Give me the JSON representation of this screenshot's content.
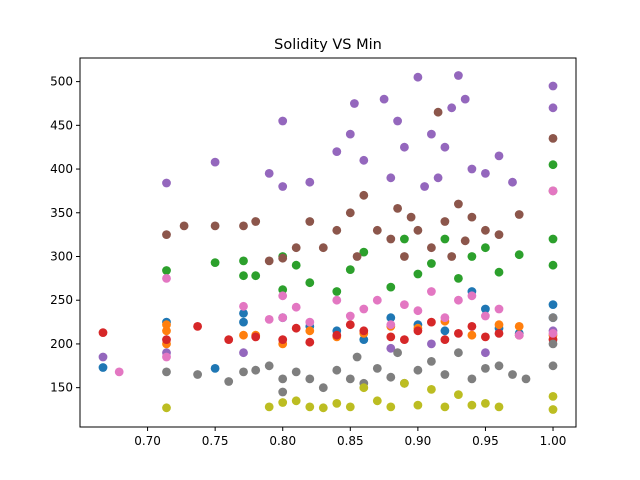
{
  "chart_data": {
    "type": "scatter",
    "title": "Solidity VS Min",
    "xlabel": "",
    "ylabel": "",
    "xlim": [
      0.65,
      1.017
    ],
    "ylim": [
      105,
      527
    ],
    "x_ticks": [
      0.7,
      0.75,
      0.8,
      0.85,
      0.9,
      0.95,
      1.0
    ],
    "x_tick_labels": [
      "0.70",
      "0.75",
      "0.80",
      "0.85",
      "0.90",
      "0.95",
      "1.00"
    ],
    "y_ticks": [
      150,
      200,
      250,
      300,
      350,
      400,
      450,
      500
    ],
    "y_tick_labels": [
      "150",
      "200",
      "250",
      "300",
      "350",
      "400",
      "450",
      "500"
    ],
    "grid": false,
    "legend": "none",
    "series": [
      {
        "color": "#1f77b4",
        "points": [
          [
            0.667,
            173
          ],
          [
            0.714,
            225
          ],
          [
            0.75,
            172
          ],
          [
            0.771,
            225
          ],
          [
            0.771,
            235
          ],
          [
            0.8,
            230
          ],
          [
            0.82,
            220
          ],
          [
            0.84,
            215
          ],
          [
            0.86,
            205
          ],
          [
            0.88,
            230
          ],
          [
            0.9,
            222
          ],
          [
            0.92,
            215
          ],
          [
            0.94,
            260
          ],
          [
            0.95,
            240
          ],
          [
            0.96,
            218
          ],
          [
            0.975,
            212
          ],
          [
            1.0,
            230
          ],
          [
            1.0,
            245
          ]
        ]
      },
      {
        "color": "#ff7f0e",
        "points": [
          [
            0.714,
            200
          ],
          [
            0.714,
            215
          ],
          [
            0.714,
            222
          ],
          [
            0.771,
            210
          ],
          [
            0.78,
            210
          ],
          [
            0.8,
            200
          ],
          [
            0.82,
            215
          ],
          [
            0.84,
            208
          ],
          [
            0.86,
            212
          ],
          [
            0.88,
            220
          ],
          [
            0.9,
            218
          ],
          [
            0.92,
            226
          ],
          [
            0.94,
            210
          ],
          [
            0.96,
            222
          ],
          [
            0.975,
            220
          ],
          [
            1.0,
            210
          ]
        ]
      },
      {
        "color": "#2ca02c",
        "points": [
          [
            0.714,
            284
          ],
          [
            0.75,
            293
          ],
          [
            0.771,
            278
          ],
          [
            0.771,
            295
          ],
          [
            0.78,
            278
          ],
          [
            0.8,
            262
          ],
          [
            0.8,
            300
          ],
          [
            0.81,
            290
          ],
          [
            0.82,
            270
          ],
          [
            0.84,
            260
          ],
          [
            0.85,
            285
          ],
          [
            0.86,
            305
          ],
          [
            0.88,
            265
          ],
          [
            0.89,
            320
          ],
          [
            0.9,
            280
          ],
          [
            0.91,
            292
          ],
          [
            0.92,
            320
          ],
          [
            0.93,
            275
          ],
          [
            0.94,
            300
          ],
          [
            0.95,
            310
          ],
          [
            0.96,
            282
          ],
          [
            0.975,
            302
          ],
          [
            1.0,
            290
          ],
          [
            1.0,
            320
          ],
          [
            1.0,
            405
          ]
        ]
      },
      {
        "color": "#d62728",
        "points": [
          [
            0.667,
            213
          ],
          [
            0.714,
            205
          ],
          [
            0.737,
            220
          ],
          [
            0.76,
            205
          ],
          [
            0.78,
            208
          ],
          [
            0.8,
            205
          ],
          [
            0.81,
            218
          ],
          [
            0.82,
            202
          ],
          [
            0.84,
            210
          ],
          [
            0.85,
            222
          ],
          [
            0.86,
            215
          ],
          [
            0.88,
            208
          ],
          [
            0.89,
            205
          ],
          [
            0.9,
            215
          ],
          [
            0.91,
            225
          ],
          [
            0.92,
            205
          ],
          [
            0.93,
            212
          ],
          [
            0.94,
            220
          ],
          [
            0.95,
            208
          ],
          [
            0.96,
            212
          ],
          [
            0.975,
            210
          ],
          [
            1.0,
            205
          ]
        ]
      },
      {
        "color": "#9467bd",
        "points": [
          [
            0.667,
            185
          ],
          [
            0.714,
            190
          ],
          [
            0.714,
            384
          ],
          [
            0.75,
            408
          ],
          [
            0.771,
            190
          ],
          [
            0.79,
            395
          ],
          [
            0.8,
            455
          ],
          [
            0.8,
            380
          ],
          [
            0.82,
            385
          ],
          [
            0.84,
            420
          ],
          [
            0.85,
            440
          ],
          [
            0.853,
            475
          ],
          [
            0.86,
            410
          ],
          [
            0.875,
            480
          ],
          [
            0.88,
            390
          ],
          [
            0.885,
            455
          ],
          [
            0.89,
            425
          ],
          [
            0.9,
            505
          ],
          [
            0.905,
            380
          ],
          [
            0.91,
            440
          ],
          [
            0.915,
            390
          ],
          [
            0.92,
            425
          ],
          [
            0.925,
            470
          ],
          [
            0.93,
            507
          ],
          [
            0.935,
            480
          ],
          [
            0.94,
            400
          ],
          [
            0.95,
            395
          ],
          [
            0.96,
            415
          ],
          [
            0.97,
            385
          ],
          [
            1.0,
            495
          ],
          [
            1.0,
            470
          ],
          [
            1.0,
            215
          ],
          [
            0.88,
            195
          ],
          [
            0.91,
            200
          ],
          [
            0.95,
            190
          ]
        ]
      },
      {
        "color": "#8c564b",
        "points": [
          [
            0.714,
            325
          ],
          [
            0.727,
            335
          ],
          [
            0.75,
            335
          ],
          [
            0.771,
            335
          ],
          [
            0.78,
            340
          ],
          [
            0.79,
            295
          ],
          [
            0.8,
            298
          ],
          [
            0.81,
            310
          ],
          [
            0.82,
            340
          ],
          [
            0.83,
            310
          ],
          [
            0.84,
            330
          ],
          [
            0.85,
            350
          ],
          [
            0.855,
            300
          ],
          [
            0.86,
            370
          ],
          [
            0.87,
            330
          ],
          [
            0.88,
            320
          ],
          [
            0.885,
            355
          ],
          [
            0.89,
            300
          ],
          [
            0.895,
            345
          ],
          [
            0.9,
            330
          ],
          [
            0.91,
            310
          ],
          [
            0.915,
            465
          ],
          [
            0.92,
            340
          ],
          [
            0.925,
            300
          ],
          [
            0.93,
            360
          ],
          [
            0.935,
            318
          ],
          [
            0.94,
            345
          ],
          [
            0.95,
            330
          ],
          [
            0.96,
            325
          ],
          [
            0.975,
            348
          ],
          [
            1.0,
            435
          ],
          [
            1.0,
            375
          ]
        ]
      },
      {
        "color": "#e377c2",
        "points": [
          [
            0.679,
            168
          ],
          [
            0.714,
            275
          ],
          [
            0.714,
            185
          ],
          [
            0.771,
            243
          ],
          [
            0.79,
            228
          ],
          [
            0.8,
            255
          ],
          [
            0.8,
            230
          ],
          [
            0.81,
            242
          ],
          [
            0.82,
            225
          ],
          [
            0.84,
            250
          ],
          [
            0.85,
            232
          ],
          [
            0.86,
            240
          ],
          [
            0.87,
            250
          ],
          [
            0.88,
            222
          ],
          [
            0.89,
            245
          ],
          [
            0.9,
            238
          ],
          [
            0.91,
            260
          ],
          [
            0.92,
            230
          ],
          [
            0.93,
            250
          ],
          [
            0.94,
            255
          ],
          [
            0.95,
            232
          ],
          [
            0.96,
            240
          ],
          [
            0.975,
            210
          ],
          [
            1.0,
            375
          ],
          [
            1.0,
            212
          ]
        ]
      },
      {
        "color": "#7f7f7f",
        "points": [
          [
            0.714,
            168
          ],
          [
            0.737,
            165
          ],
          [
            0.76,
            157
          ],
          [
            0.771,
            168
          ],
          [
            0.78,
            170
          ],
          [
            0.79,
            175
          ],
          [
            0.8,
            160
          ],
          [
            0.8,
            145
          ],
          [
            0.81,
            168
          ],
          [
            0.82,
            160
          ],
          [
            0.83,
            150
          ],
          [
            0.84,
            170
          ],
          [
            0.85,
            160
          ],
          [
            0.855,
            185
          ],
          [
            0.86,
            155
          ],
          [
            0.87,
            172
          ],
          [
            0.88,
            162
          ],
          [
            0.885,
            190
          ],
          [
            0.89,
            155
          ],
          [
            0.9,
            170
          ],
          [
            0.91,
            180
          ],
          [
            0.92,
            165
          ],
          [
            0.93,
            190
          ],
          [
            0.94,
            160
          ],
          [
            0.95,
            172
          ],
          [
            0.96,
            175
          ],
          [
            0.97,
            165
          ],
          [
            0.98,
            160
          ],
          [
            1.0,
            200
          ],
          [
            1.0,
            230
          ],
          [
            1.0,
            175
          ]
        ]
      },
      {
        "color": "#bcbd22",
        "points": [
          [
            0.714,
            127
          ],
          [
            0.79,
            128
          ],
          [
            0.8,
            133
          ],
          [
            0.81,
            135
          ],
          [
            0.82,
            128
          ],
          [
            0.83,
            127
          ],
          [
            0.84,
            132
          ],
          [
            0.85,
            128
          ],
          [
            0.86,
            150
          ],
          [
            0.87,
            135
          ],
          [
            0.88,
            128
          ],
          [
            0.89,
            155
          ],
          [
            0.9,
            130
          ],
          [
            0.91,
            148
          ],
          [
            0.92,
            128
          ],
          [
            0.93,
            142
          ],
          [
            0.94,
            130
          ],
          [
            0.95,
            132
          ],
          [
            0.96,
            128
          ],
          [
            1.0,
            125
          ],
          [
            1.0,
            140
          ]
        ]
      }
    ]
  }
}
